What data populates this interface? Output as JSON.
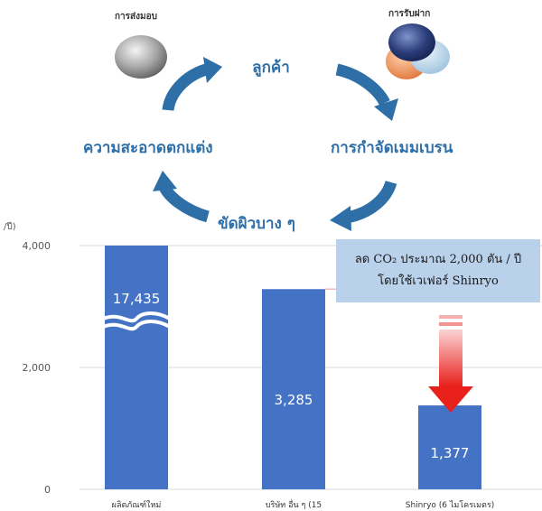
{
  "cycle": {
    "delivery_label": "การส่งมอบ",
    "receive_label": "การรับฝาก",
    "steps": {
      "customer": "ลูกค้า",
      "membrane_removal": "การกำจัดเมมเบรน",
      "thinning": "ขัดผิวบาง ๆ",
      "cleaning": "ความสะอาดตกแต่ง"
    },
    "colors": {
      "arrow": "#2e6fa8",
      "step_text": "#2e6fa8"
    }
  },
  "callout": {
    "line1": "ลด CO₂ ประมาณ 2,000 ตัน / ปี",
    "line2": "โดยใช้เวเฟอร์ Shinryo",
    "background": "#b9d1ea"
  },
  "chart_data": {
    "type": "bar",
    "unit_label": "/ปี)",
    "categories": [
      "ผลิตภัณฑ์ใหม่",
      "บริษัท อื่น ๆ (15",
      "Shinryo (6 ไมโครเมตร)"
    ],
    "values": [
      17435,
      3285,
      1377
    ],
    "value_labels": [
      "17,435",
      "3,285",
      "1,377"
    ],
    "axis_break": {
      "bar_index": 0,
      "shown_top": 4000
    },
    "ylim": [
      0,
      4000
    ],
    "yticks": [
      0,
      2000,
      4000
    ],
    "ytick_labels": [
      "0",
      "2,000",
      "4,000"
    ],
    "reference_line_value": 3285,
    "colors": {
      "bar": "#4472c4",
      "reference_line": "#f2b8b8",
      "arrow": "#e8211d"
    }
  }
}
